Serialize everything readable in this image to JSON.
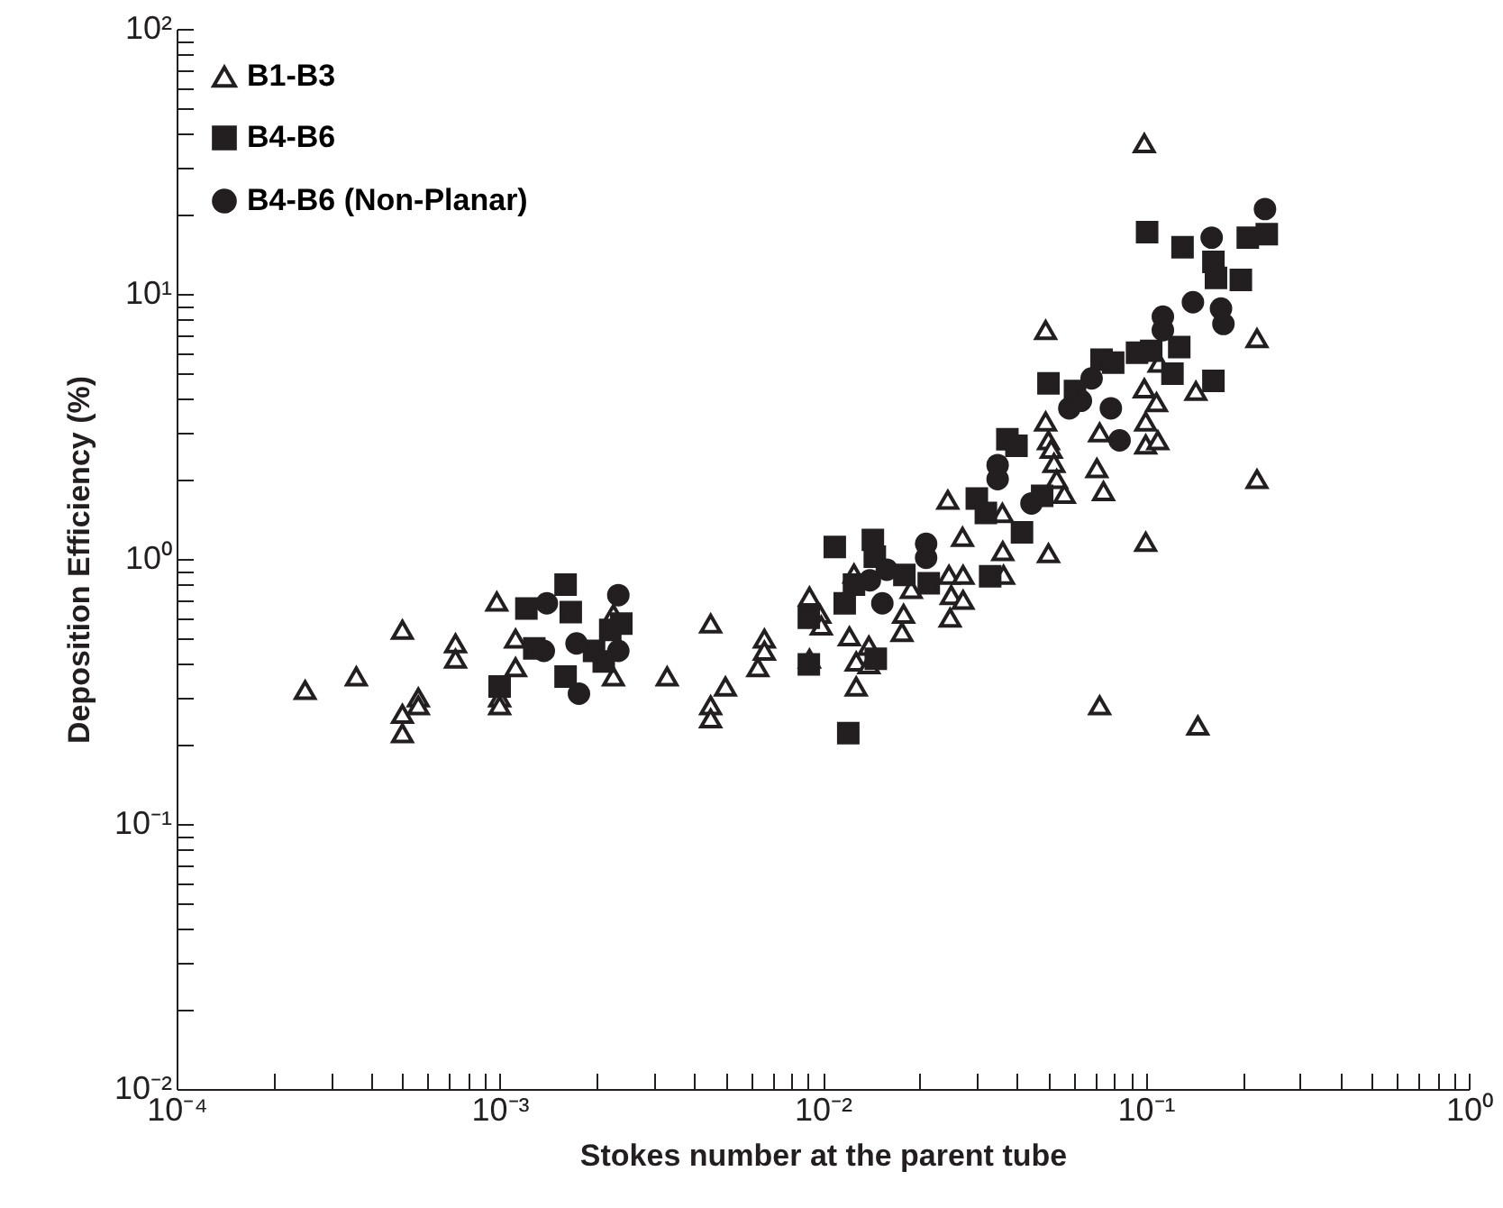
{
  "chart_data": {
    "type": "scatter",
    "xlabel": "Stokes number at the parent tube",
    "ylabel": "Deposition Efficiency (%)",
    "log": "xy",
    "legend": "top left",
    "grid": false,
    "xlim": [
      0.0001,
      1
    ],
    "ylim": [
      0.01,
      100
    ],
    "xticks": [
      {
        "value": 0.0001,
        "label": "10⁻⁴"
      },
      {
        "value": 0.0002,
        "label": null
      },
      {
        "value": 0.0003,
        "label": null
      },
      {
        "value": 0.0004,
        "label": null
      },
      {
        "value": 0.0005,
        "label": null
      },
      {
        "value": 0.0006,
        "label": null
      },
      {
        "value": 0.0007,
        "label": null
      },
      {
        "value": 0.0008,
        "label": null
      },
      {
        "value": 0.0009,
        "label": null
      },
      {
        "value": 0.001,
        "label": "10⁻³"
      },
      {
        "value": 0.002,
        "label": null
      },
      {
        "value": 0.003,
        "label": null
      },
      {
        "value": 0.004,
        "label": null
      },
      {
        "value": 0.005,
        "label": null
      },
      {
        "value": 0.006,
        "label": null
      },
      {
        "value": 0.007,
        "label": null
      },
      {
        "value": 0.008,
        "label": null
      },
      {
        "value": 0.009,
        "label": null
      },
      {
        "value": 0.01,
        "label": "10⁻²"
      },
      {
        "value": 0.02,
        "label": null
      },
      {
        "value": 0.03,
        "label": null
      },
      {
        "value": 0.04,
        "label": null
      },
      {
        "value": 0.05,
        "label": null
      },
      {
        "value": 0.06,
        "label": null
      },
      {
        "value": 0.07,
        "label": null
      },
      {
        "value": 0.08,
        "label": null
      },
      {
        "value": 0.09,
        "label": null
      },
      {
        "value": 0.1,
        "label": "10⁻¹"
      },
      {
        "value": 0.2,
        "label": null
      },
      {
        "value": 0.3,
        "label": null
      },
      {
        "value": 0.4,
        "label": null
      },
      {
        "value": 0.5,
        "label": null
      },
      {
        "value": 0.6,
        "label": null
      },
      {
        "value": 0.7,
        "label": null
      },
      {
        "value": 0.8,
        "label": null
      },
      {
        "value": 0.9,
        "label": null
      },
      {
        "value": 1,
        "label": "10⁰"
      }
    ],
    "yticks": [
      {
        "value": 0.01,
        "label": "10⁻²"
      },
      {
        "value": 0.02,
        "label": null
      },
      {
        "value": 0.03,
        "label": null
      },
      {
        "value": 0.04,
        "label": null
      },
      {
        "value": 0.05,
        "label": null
      },
      {
        "value": 0.06,
        "label": null
      },
      {
        "value": 0.07,
        "label": null
      },
      {
        "value": 0.08,
        "label": null
      },
      {
        "value": 0.09,
        "label": null
      },
      {
        "value": 0.1,
        "label": "10⁻¹"
      },
      {
        "value": 0.2,
        "label": null
      },
      {
        "value": 0.3,
        "label": null
      },
      {
        "value": 0.4,
        "label": null
      },
      {
        "value": 0.5,
        "label": null
      },
      {
        "value": 0.6,
        "label": null
      },
      {
        "value": 0.7,
        "label": null
      },
      {
        "value": 0.8,
        "label": null
      },
      {
        "value": 0.9,
        "label": null
      },
      {
        "value": 1,
        "label": "10⁰"
      },
      {
        "value": 2,
        "label": null
      },
      {
        "value": 3,
        "label": null
      },
      {
        "value": 4,
        "label": null
      },
      {
        "value": 5,
        "label": null
      },
      {
        "value": 6,
        "label": null
      },
      {
        "value": 7,
        "label": null
      },
      {
        "value": 8,
        "label": null
      },
      {
        "value": 9,
        "label": null
      },
      {
        "value": 10,
        "label": "10¹"
      },
      {
        "value": 20,
        "label": null
      },
      {
        "value": 30,
        "label": null
      },
      {
        "value": 40,
        "label": null
      },
      {
        "value": 50,
        "label": null
      },
      {
        "value": 60,
        "label": null
      },
      {
        "value": 70,
        "label": null
      },
      {
        "value": 80,
        "label": null
      },
      {
        "value": 90,
        "label": null
      },
      {
        "value": 100,
        "label": "10²"
      }
    ],
    "series": [
      {
        "name": "B1-B3",
        "color": "#231f20",
        "marker": "triangle",
        "x": [
          0.00025,
          0.00036,
          0.0005,
          0.0005,
          0.0005,
          0.00056,
          0.00056,
          0.00073,
          0.00073,
          0.00098,
          0.001,
          0.001,
          0.00112,
          0.00112,
          0.00225,
          0.00225,
          0.0033,
          0.0045,
          0.0045,
          0.0045,
          0.005,
          0.0066,
          0.0066,
          0.0063,
          0.0091,
          0.0091,
          0.0098,
          0.0099,
          0.0121,
          0.0125,
          0.0127,
          0.0127,
          0.0139,
          0.0139,
          0.0176,
          0.0178,
          0.0188,
          0.0244,
          0.0246,
          0.0248,
          0.025,
          0.0271,
          0.0272,
          0.0272,
          0.0361,
          0.0363,
          0.036,
          0.049,
          0.05,
          0.049,
          0.05,
          0.051,
          0.052,
          0.053,
          0.056,
          0.0706,
          0.074,
          0.072,
          0.072,
          0.099,
          0.099,
          0.1,
          0.1,
          0.1,
          0.108,
          0.109,
          0.11,
          0.143,
          0.145,
          0.221,
          0.221
        ],
        "values": [
          0.32,
          0.36,
          0.54,
          0.26,
          0.22,
          0.3,
          0.28,
          0.48,
          0.42,
          0.69,
          0.3,
          0.28,
          0.5,
          0.39,
          0.36,
          0.62,
          0.36,
          0.57,
          0.28,
          0.25,
          0.33,
          0.5,
          0.45,
          0.39,
          0.72,
          0.42,
          0.62,
          0.56,
          0.51,
          0.88,
          0.33,
          0.41,
          0.47,
          0.4,
          0.53,
          0.62,
          0.77,
          1.67,
          0.87,
          0.6,
          0.73,
          1.21,
          0.87,
          0.7,
          1.07,
          0.87,
          1.49,
          7.3,
          1.05,
          3.3,
          2.8,
          2.6,
          2.3,
          2.0,
          1.76,
          2.2,
          1.8,
          0.28,
          3.0,
          37,
          4.4,
          1.16,
          3.3,
          2.7,
          3.9,
          2.8,
          5.5,
          4.3,
          0.235,
          6.8,
          2.0
        ]
      },
      {
        "name": "B4-B6",
        "color": "#231f20",
        "marker": "square",
        "x": [
          0.00121,
          0.00128,
          null,
          0.0016,
          0.00166,
          0.0016,
          0.001,
          0.00196,
          0.0021,
          0.0022,
          0.00238,
          0.00906,
          0.00906,
          0.0109,
          0.0117,
          0.012,
          null,
          0.0143,
          0.0145,
          0.0146,
          0.0125,
          0.0179,
          0.0213,
          0.03,
          0.032,
          0.033,
          0.0373,
          0.0398,
          0.0414,
          0.05,
          0.0478,
          null,
          0.0604,
          0.073,
          0.0793,
          0.094,
          0.101,
          0.104,
          0.121,
          0.127,
          0.13,
          0.162,
          0.165,
          0.162,
          0.197,
          0.207,
          0.237
        ],
        "values": [
          0.65,
          0.46,
          null,
          0.8,
          0.63,
          0.36,
          0.33,
          0.45,
          0.41,
          0.54,
          0.57,
          0.6,
          0.4,
          1.11,
          0.68,
          0.22,
          null,
          1.18,
          1.02,
          0.42,
          0.8,
          0.87,
          0.81,
          1.69,
          1.49,
          0.86,
          2.83,
          2.67,
          1.26,
          4.6,
          1.73,
          null,
          4.3,
          5.65,
          5.5,
          6.0,
          17.1,
          6.1,
          5.0,
          6.3,
          15.0,
          13.2,
          11.5,
          4.7,
          11.3,
          16.3,
          16.8
        ]
      },
      {
        "name": "B4-B6 (Non-Planar)",
        "color": "#231f20",
        "marker": "circle",
        "x": [
          0.00137,
          0.0014,
          0.00173,
          0.00176,
          0.00233,
          0.00233,
          0.014,
          0.0153,
          0.0158,
          0.0209,
          0.0209,
          0.0348,
          0.0348,
          0.0443,
          0.058,
          0.063,
          0.068,
          0.078,
          0.083,
          0.113,
          0.113,
          0.14,
          0.16,
          0.171,
          0.174,
          0.234
        ],
        "values": [
          0.45,
          0.68,
          0.48,
          0.31,
          0.73,
          0.45,
          0.83,
          0.68,
          0.91,
          1.14,
          1.01,
          2.0,
          2.26,
          1.62,
          3.7,
          3.95,
          4.8,
          3.7,
          2.8,
          8.2,
          7.3,
          9.3,
          16.3,
          8.8,
          7.7,
          20.9
        ]
      }
    ]
  }
}
